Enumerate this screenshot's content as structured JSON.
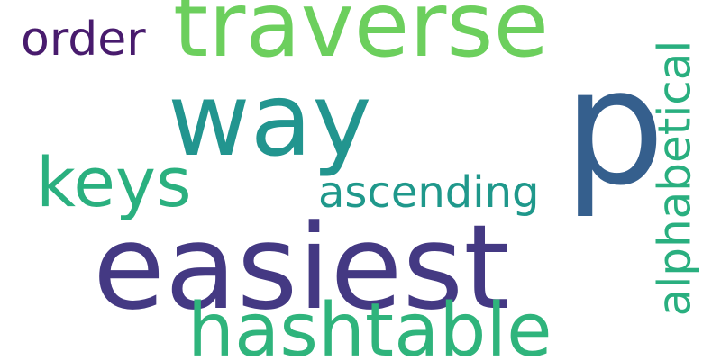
{
  "words": {
    "traverse": "traverse",
    "way": "way",
    "p": "p",
    "order": "order",
    "keys": "keys",
    "ascending": "ascending",
    "easiest": "easiest",
    "hashtable": "hashtable",
    "alphabetical": "alphabetical"
  },
  "colors": {
    "background": "#ffffff",
    "traverse": "#6ccf5d",
    "way": "#22958f",
    "p": "#355f8d",
    "order": "#481b6d",
    "keys": "#2ab07f",
    "ascending": "#1f988b",
    "easiest": "#443983",
    "hashtable": "#2fb47c",
    "alphabetical": "#29af7f"
  }
}
